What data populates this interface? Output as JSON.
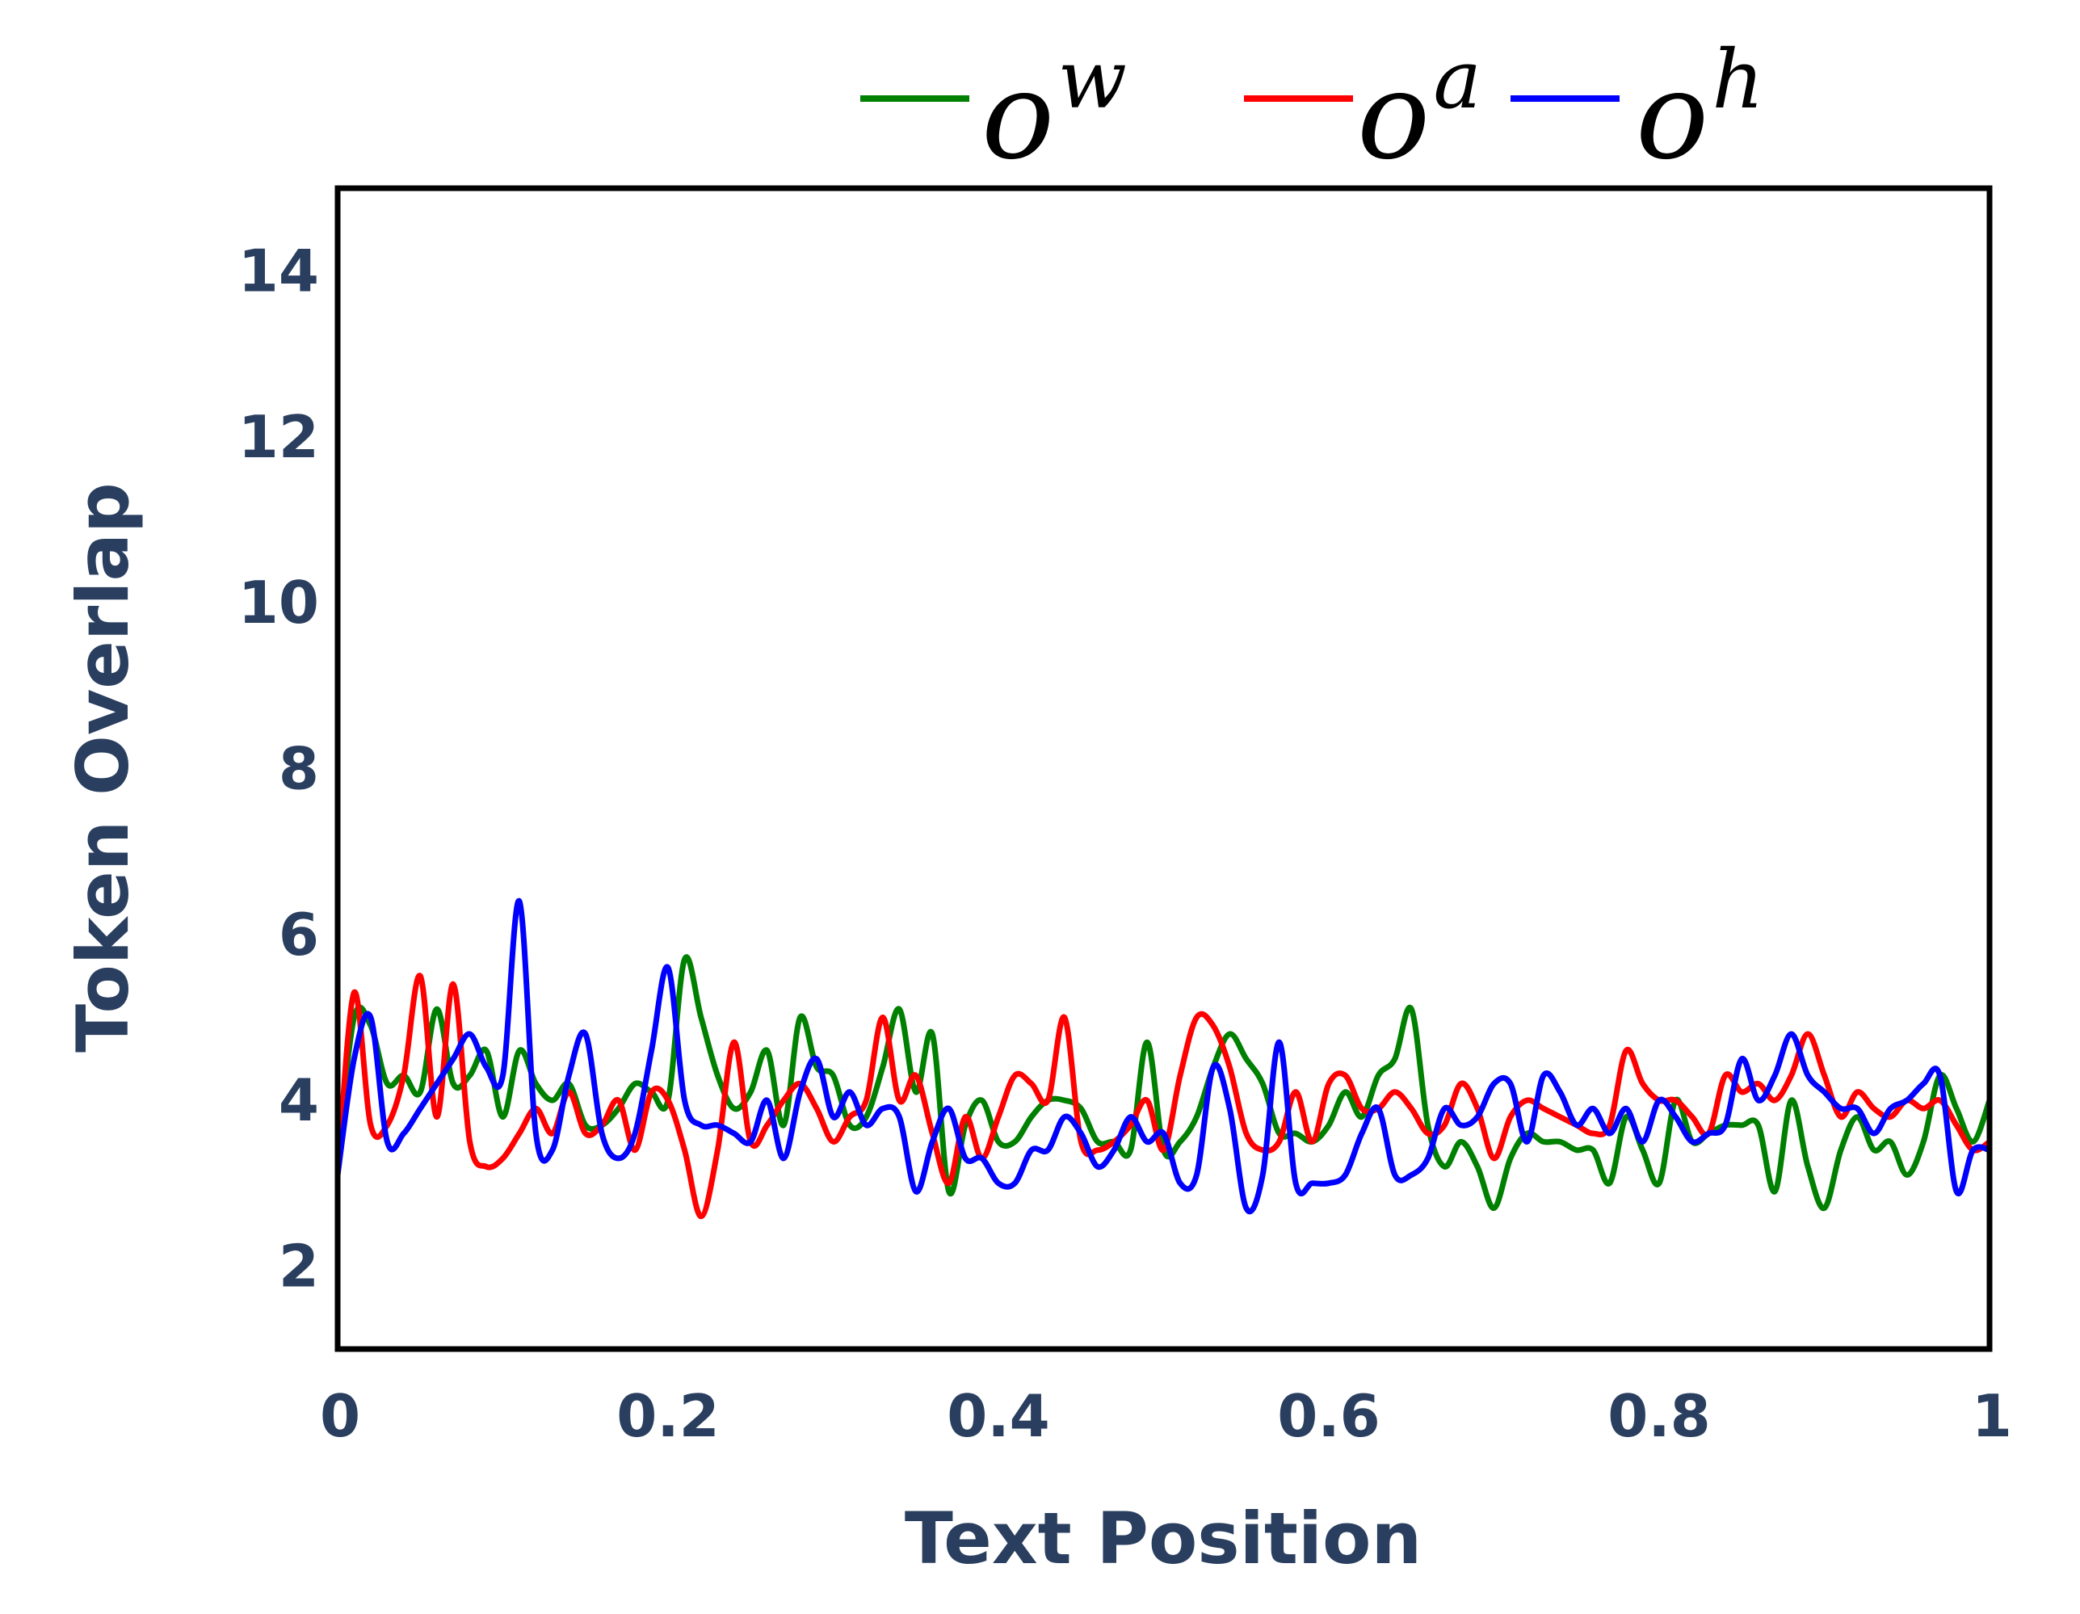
{
  "chart_data": {
    "type": "line",
    "title": "",
    "xlabel": "Text Position",
    "ylabel": "Token Overlap",
    "xlim": [
      0,
      1
    ],
    "ylim": [
      1,
      15
    ],
    "xticks": [
      0,
      0.2,
      0.4,
      0.6,
      0.8,
      1
    ],
    "xtick_labels": [
      "0",
      "0.2",
      "0.4",
      "0.6",
      "0.8",
      "1"
    ],
    "yticks": [
      2,
      4,
      6,
      8,
      10,
      12,
      14
    ],
    "ytick_labels": [
      "2",
      "4",
      "6",
      "8",
      "10",
      "12",
      "14"
    ],
    "grid": false,
    "legend_position": "top",
    "x": [
      0,
      0.01,
      0.02,
      0.03,
      0.04,
      0.05,
      0.06,
      0.07,
      0.08,
      0.09,
      0.1,
      0.11,
      0.12,
      0.13,
      0.14,
      0.15,
      0.16,
      0.17,
      0.18,
      0.19,
      0.2,
      0.21,
      0.22,
      0.23,
      0.24,
      0.25,
      0.26,
      0.27,
      0.28,
      0.29,
      0.3,
      0.31,
      0.32,
      0.33,
      0.34,
      0.35,
      0.36,
      0.37,
      0.38,
      0.39,
      0.4,
      0.41,
      0.42,
      0.43,
      0.44,
      0.45,
      0.46,
      0.47,
      0.48,
      0.49,
      0.5,
      0.51,
      0.52,
      0.53,
      0.54,
      0.55,
      0.56,
      0.57,
      0.58,
      0.59,
      0.6,
      0.61,
      0.62,
      0.63,
      0.64,
      0.65,
      0.66,
      0.67,
      0.68,
      0.69,
      0.7,
      0.71,
      0.72,
      0.73,
      0.74,
      0.75,
      0.76,
      0.77,
      0.78,
      0.79,
      0.8,
      0.81,
      0.82,
      0.83,
      0.84,
      0.85,
      0.86,
      0.87,
      0.88,
      0.89,
      0.9,
      0.91,
      0.92,
      0.93,
      0.94,
      0.95,
      0.96,
      0.97,
      0.98,
      0.99,
      1.0
    ],
    "series": [
      {
        "name": "o^w",
        "base": "o",
        "sup": "w",
        "color": "#008000",
        "values": [
          3.3,
          5.0,
          4.9,
          4.2,
          4.3,
          4.1,
          5.1,
          4.2,
          4.3,
          4.6,
          3.8,
          4.6,
          4.2,
          4.0,
          4.2,
          3.7,
          3.7,
          3.9,
          4.2,
          4.1,
          4.0,
          5.7,
          5.0,
          4.3,
          3.9,
          4.1,
          4.6,
          3.7,
          5.0,
          4.4,
          4.3,
          3.7,
          3.8,
          4.4,
          5.1,
          4.1,
          4.8,
          2.9,
          3.7,
          4.0,
          3.5,
          3.5,
          3.8,
          4.0,
          4.0,
          3.9,
          3.5,
          3.5,
          3.4,
          4.7,
          3.4,
          3.5,
          3.8,
          4.4,
          4.8,
          4.5,
          4.2,
          3.6,
          3.6,
          3.5,
          3.7,
          4.1,
          3.8,
          4.3,
          4.5,
          5.1,
          3.7,
          3.2,
          3.5,
          3.2,
          2.7,
          3.3,
          3.6,
          3.5,
          3.5,
          3.4,
          3.4,
          3.0,
          3.8,
          3.4,
          3.0,
          4.0,
          3.5,
          3.6,
          3.7,
          3.7,
          3.7,
          2.9,
          4.0,
          3.2,
          2.7,
          3.4,
          3.8,
          3.4,
          3.5,
          3.1,
          3.5,
          4.3,
          3.9,
          3.5,
          4.0
        ]
      },
      {
        "name": "o^a",
        "base": "o",
        "sup": "a",
        "color": "#ff0000",
        "values": [
          3.1,
          5.3,
          3.7,
          3.7,
          4.3,
          5.5,
          3.8,
          5.4,
          3.5,
          3.2,
          3.3,
          3.6,
          3.9,
          3.6,
          4.1,
          3.6,
          3.7,
          4.0,
          3.4,
          4.1,
          4.0,
          3.4,
          2.6,
          3.4,
          4.7,
          3.5,
          3.7,
          4.0,
          4.2,
          3.9,
          3.5,
          3.8,
          4.0,
          5.0,
          4.0,
          4.3,
          3.6,
          3.0,
          3.8,
          3.3,
          3.8,
          4.3,
          4.2,
          4.0,
          5.0,
          3.5,
          3.4,
          3.5,
          3.7,
          4.0,
          3.4,
          4.3,
          5.0,
          4.9,
          4.4,
          3.6,
          3.4,
          3.5,
          4.1,
          3.5,
          4.2,
          4.3,
          3.9,
          3.9,
          4.1,
          3.9,
          3.6,
          3.7,
          4.2,
          3.9,
          3.3,
          3.8,
          4.0,
          3.9,
          3.8,
          3.7,
          3.6,
          3.7,
          4.6,
          4.2,
          4.0,
          4.0,
          3.8,
          3.6,
          4.3,
          4.1,
          4.2,
          4.0,
          4.3,
          4.8,
          4.3,
          3.8,
          4.1,
          3.9,
          3.8,
          4.0,
          3.9,
          4.0,
          3.7,
          3.4,
          3.5
        ]
      },
      {
        "name": "o^h",
        "base": "o",
        "sup": "h",
        "color": "#0000ff",
        "values": [
          3.1,
          4.5,
          5.0,
          3.5,
          3.6,
          3.9,
          4.2,
          4.5,
          4.8,
          4.4,
          4.3,
          6.4,
          3.6,
          3.4,
          4.3,
          4.8,
          3.6,
          3.3,
          3.6,
          4.6,
          5.6,
          4.0,
          3.7,
          3.7,
          3.6,
          3.5,
          4.0,
          3.3,
          4.1,
          4.5,
          3.8,
          4.1,
          3.7,
          3.9,
          3.8,
          2.9,
          3.5,
          3.9,
          3.3,
          3.3,
          3.0,
          3.0,
          3.4,
          3.4,
          3.8,
          3.6,
          3.2,
          3.4,
          3.8,
          3.5,
          3.6,
          3.0,
          3.1,
          4.4,
          3.9,
          2.7,
          3.1,
          4.7,
          3.0,
          3.0,
          3.0,
          3.1,
          3.6,
          3.9,
          3.1,
          3.1,
          3.3,
          3.9,
          3.7,
          3.8,
          4.2,
          4.2,
          3.5,
          4.3,
          4.1,
          3.7,
          3.9,
          3.6,
          3.9,
          3.5,
          4.0,
          3.8,
          3.5,
          3.6,
          3.7,
          4.5,
          4.0,
          4.3,
          4.8,
          4.3,
          4.1,
          3.9,
          3.9,
          3.6,
          3.9,
          4.0,
          4.2,
          4.3,
          2.9,
          3.4,
          3.4
        ]
      }
    ]
  }
}
